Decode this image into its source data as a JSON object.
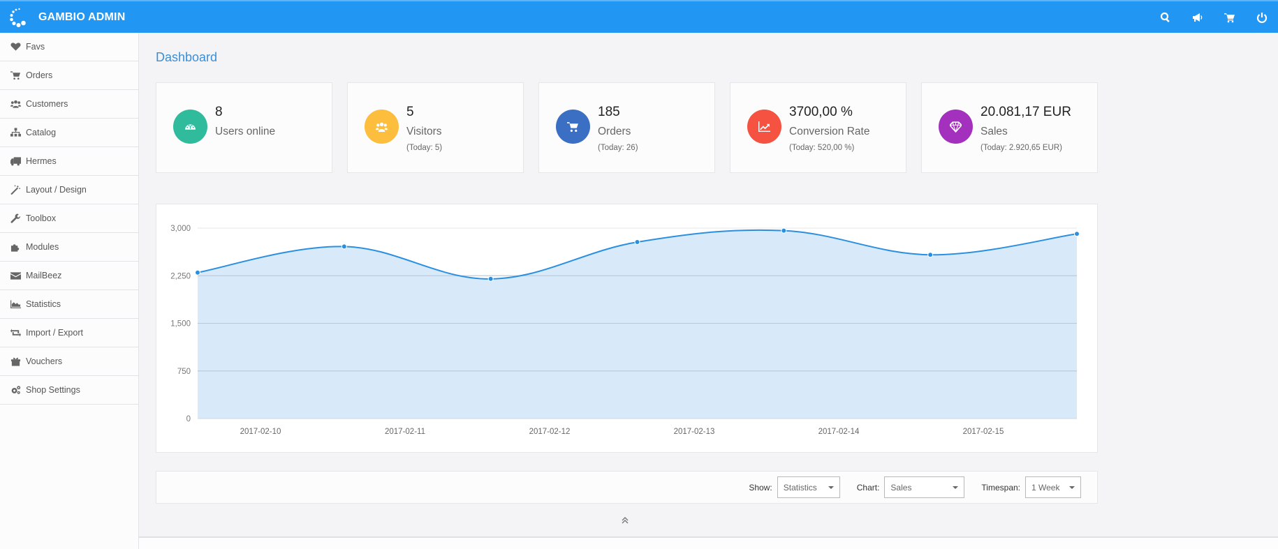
{
  "header": {
    "app_title": "GAMBIO ADMIN",
    "brand_color": "#2196f3",
    "actions": [
      {
        "name": "search",
        "icon": "search-icon"
      },
      {
        "name": "announcements",
        "icon": "megaphone-icon"
      },
      {
        "name": "cart",
        "icon": "cart-icon"
      },
      {
        "name": "logout",
        "icon": "power-icon"
      }
    ]
  },
  "sidebar": {
    "items": [
      {
        "label": "Favs",
        "icon": "heart-icon"
      },
      {
        "label": "Orders",
        "icon": "cart-icon"
      },
      {
        "label": "Customers",
        "icon": "users-icon"
      },
      {
        "label": "Catalog",
        "icon": "sitemap-icon"
      },
      {
        "label": "Hermes",
        "icon": "truck-icon"
      },
      {
        "label": "Layout / Design",
        "icon": "magic-wand-icon"
      },
      {
        "label": "Toolbox",
        "icon": "wrench-icon"
      },
      {
        "label": "Modules",
        "icon": "puzzle-icon"
      },
      {
        "label": "MailBeez",
        "icon": "envelope-icon"
      },
      {
        "label": "Statistics",
        "icon": "area-chart-icon"
      },
      {
        "label": "Import / Export",
        "icon": "retweet-icon"
      },
      {
        "label": "Vouchers",
        "icon": "gift-icon"
      },
      {
        "label": "Shop Settings",
        "icon": "gears-icon"
      }
    ]
  },
  "main": {
    "page_title": "Dashboard",
    "stats": [
      {
        "value": "8",
        "label": "Users online",
        "sub": "",
        "icon": "dashboard-gauge-icon",
        "color": "#2fbb9c"
      },
      {
        "value": "5",
        "label": "Visitors",
        "sub": "(Today: 5)",
        "icon": "users-icon",
        "color": "#fdbd3d"
      },
      {
        "value": "185",
        "label": "Orders",
        "sub": "(Today: 26)",
        "icon": "cart-icon",
        "color": "#3b6fc4"
      },
      {
        "value": "3700,00 %",
        "label": "Conversion Rate",
        "sub": "(Today: 520,00 %)",
        "icon": "line-chart-icon",
        "color": "#f65241"
      },
      {
        "value": "20.081,17 EUR",
        "label": "Sales",
        "sub": "(Today: 2.920,65 EUR)",
        "icon": "diamond-icon",
        "color": "#a431bd"
      }
    ],
    "filters": {
      "show_label": "Show:",
      "show_value": "Statistics",
      "chart_label": "Chart:",
      "chart_value": "Sales",
      "timespan_label": "Timespan:",
      "timespan_value": "1 Week"
    },
    "collapse_icon": "double-chevron-up-icon"
  },
  "chart_data": {
    "type": "area",
    "title": "",
    "xlabel": "",
    "ylabel": "",
    "x_tick_labels": [
      "2017-02-10",
      "2017-02-11",
      "2017-02-12",
      "2017-02-13",
      "2017-02-14",
      "2017-02-15"
    ],
    "y_tick_labels": [
      "0",
      "750",
      "1,500",
      "2,250",
      "3,000"
    ],
    "y_ticks": [
      0,
      750,
      1500,
      2250,
      3000
    ],
    "ylim": [
      0,
      3000
    ],
    "grid": true,
    "legend": "none",
    "series": [
      {
        "name": "Sales",
        "color": "#2b8fe0",
        "fill": "#d6e8fa",
        "values": [
          2300,
          2710,
          2200,
          2780,
          2960,
          2580,
          2910
        ]
      }
    ]
  }
}
